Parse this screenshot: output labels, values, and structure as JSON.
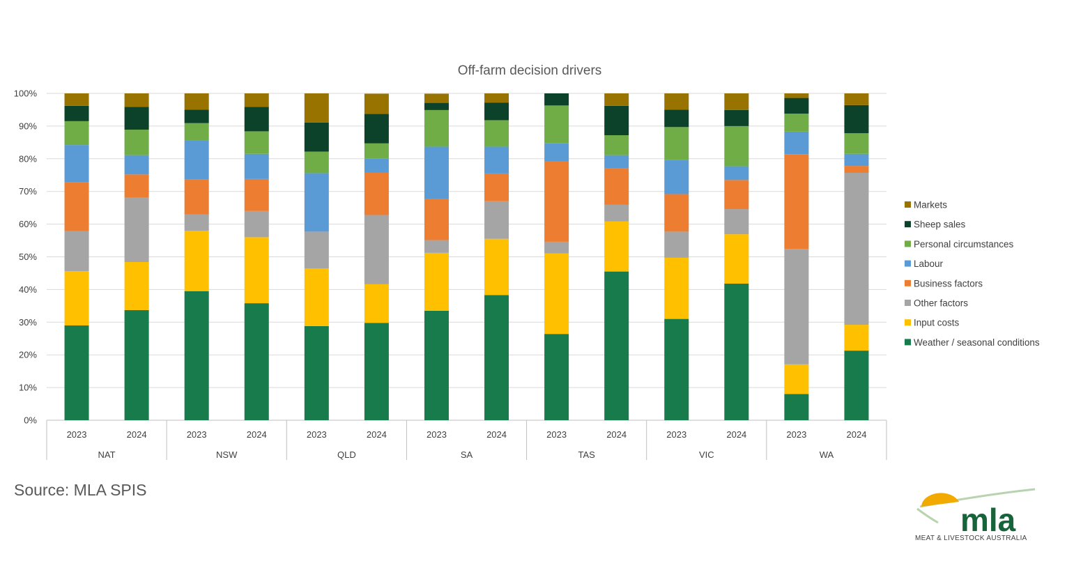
{
  "colors": {
    "markets": "#997300",
    "sheep_sales": "#0c4229",
    "personal": "#70ad47",
    "labour": "#5b9bd5",
    "business": "#ed7d31",
    "other": "#a5a5a5",
    "input": "#ffc000",
    "weather": "#177b4b",
    "grid": "#d9d9d9",
    "axis": "#bfbfbf"
  },
  "source_note": "Source: MLA SPIS",
  "logo": {
    "wordmark": "mla",
    "subtitle": "MEAT & LIVESTOCK AUSTRALIA"
  },
  "chart_data": {
    "type": "bar",
    "stacked": true,
    "percent_stacked": true,
    "title": "Off-farm decision drivers",
    "xlabel": "",
    "ylabel": "",
    "ylim": [
      0,
      100
    ],
    "yticks": [
      "0%",
      "10%",
      "20%",
      "30%",
      "40%",
      "50%",
      "60%",
      "70%",
      "80%",
      "90%",
      "100%"
    ],
    "grid": true,
    "legend_position": "right",
    "groups": [
      "NAT",
      "NSW",
      "QLD",
      "SA",
      "TAS",
      "VIC",
      "WA"
    ],
    "categories": [
      "2023",
      "2024",
      "2023",
      "2024",
      "2023",
      "2024",
      "2023",
      "2024",
      "2023",
      "2024",
      "2023",
      "2024",
      "2023",
      "2024"
    ],
    "series": [
      {
        "name": "Weather / seasonal conditions",
        "color": "#177b4b",
        "values": [
          29,
          33.7,
          39.5,
          35.8,
          28.8,
          29.8,
          33.5,
          38.3,
          26.4,
          45.5,
          31,
          41.8,
          8,
          21.3
        ]
      },
      {
        "name": "Input costs",
        "color": "#ffc000",
        "values": [
          16.6,
          14.7,
          18.5,
          20.2,
          17.6,
          11.8,
          17.7,
          17.2,
          24.6,
          15.3,
          18.7,
          15.1,
          9.1,
          7.9
        ]
      },
      {
        "name": "Other factors",
        "color": "#a5a5a5",
        "values": [
          12.3,
          19.7,
          5,
          8,
          11.3,
          21.2,
          3.9,
          11.5,
          3.6,
          5.1,
          8,
          7.7,
          35.3,
          46.5
        ]
      },
      {
        "name": "Business factors",
        "color": "#ed7d31",
        "values": [
          15,
          7.1,
          10.6,
          9.8,
          0,
          13,
          12.7,
          8.5,
          24.6,
          11.1,
          11.5,
          8.9,
          29,
          2.1
        ]
      },
      {
        "name": "Labour",
        "color": "#5b9bd5",
        "values": [
          11.3,
          5.9,
          12.1,
          7.7,
          17.9,
          4.3,
          15.9,
          8.2,
          5.5,
          4.1,
          10.4,
          4.2,
          6.9,
          3.7
        ]
      },
      {
        "name": "Personal circumstances",
        "color": "#70ad47",
        "values": [
          7.3,
          7.8,
          5.2,
          6.9,
          6.6,
          4.6,
          11.2,
          8.1,
          11.6,
          6.1,
          10.1,
          12.3,
          5.5,
          6.3
        ]
      },
      {
        "name": "Sheep sales",
        "color": "#0c4229",
        "values": [
          4.7,
          7,
          4.1,
          7.5,
          8.9,
          9,
          2.2,
          5.4,
          3.7,
          9,
          5.3,
          4.9,
          4.8,
          8.6
        ]
      },
      {
        "name": "Markets",
        "color": "#997300",
        "values": [
          3.8,
          4.1,
          5,
          4.1,
          8.9,
          6.2,
          2.8,
          2.8,
          0,
          3.8,
          5,
          5.1,
          1.4,
          3.6
        ]
      }
    ],
    "legend_order": [
      "Markets",
      "Sheep sales",
      "Personal circumstances",
      "Labour",
      "Business factors",
      "Other factors",
      "Input costs",
      "Weather / seasonal conditions"
    ]
  }
}
